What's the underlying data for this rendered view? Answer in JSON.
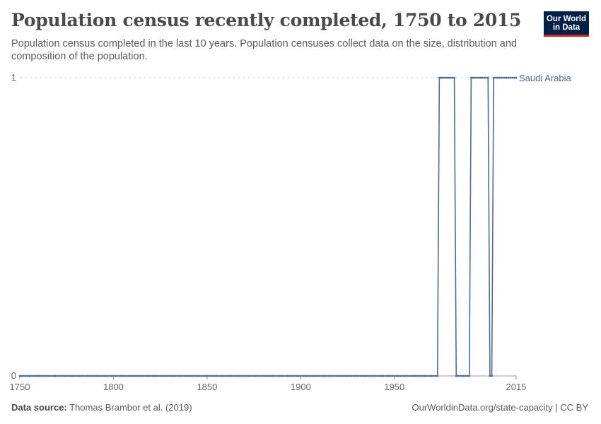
{
  "header": {
    "title": "Population census recently completed, 1750 to 2015",
    "subtitle": "Population census completed in the last 10 years. Population censuses collect data on the size, distribution and composition of the population."
  },
  "logo": {
    "line1": "Our World",
    "line2": "in Data"
  },
  "footer": {
    "source_label": "Data source:",
    "source_text": "Thomas Brambor et al. (2019)",
    "url": "OurWorldinData.org/state-capacity | CC BY"
  },
  "colors": {
    "series": "#4c6a9c",
    "grid": "#dddddd",
    "axis": "#999999",
    "logo_bg": "#002147",
    "logo_accent": "#ce261e"
  },
  "chart_data": {
    "type": "line",
    "title": "Population census recently completed, 1750 to 2015",
    "xlabel": "",
    "ylabel": "",
    "xlim": [
      1750,
      2015
    ],
    "ylim": [
      0,
      1
    ],
    "x_ticks": [
      1750,
      1800,
      1850,
      1900,
      1950,
      2015
    ],
    "y_ticks": [
      0,
      1
    ],
    "grid": "horizontal",
    "legend": "line-end label",
    "series": [
      {
        "name": "Saudi Arabia",
        "step_intervals": [
          {
            "from": 1750,
            "to": 1973,
            "value": 0
          },
          {
            "from": 1974,
            "to": 1982,
            "value": 1
          },
          {
            "from": 1983,
            "to": 1990,
            "value": 0
          },
          {
            "from": 1991,
            "to": 2000,
            "value": 1
          },
          {
            "from": 2001,
            "to": 2002,
            "value": 0
          },
          {
            "from": 2003,
            "to": 2015,
            "value": 1
          }
        ]
      }
    ]
  }
}
